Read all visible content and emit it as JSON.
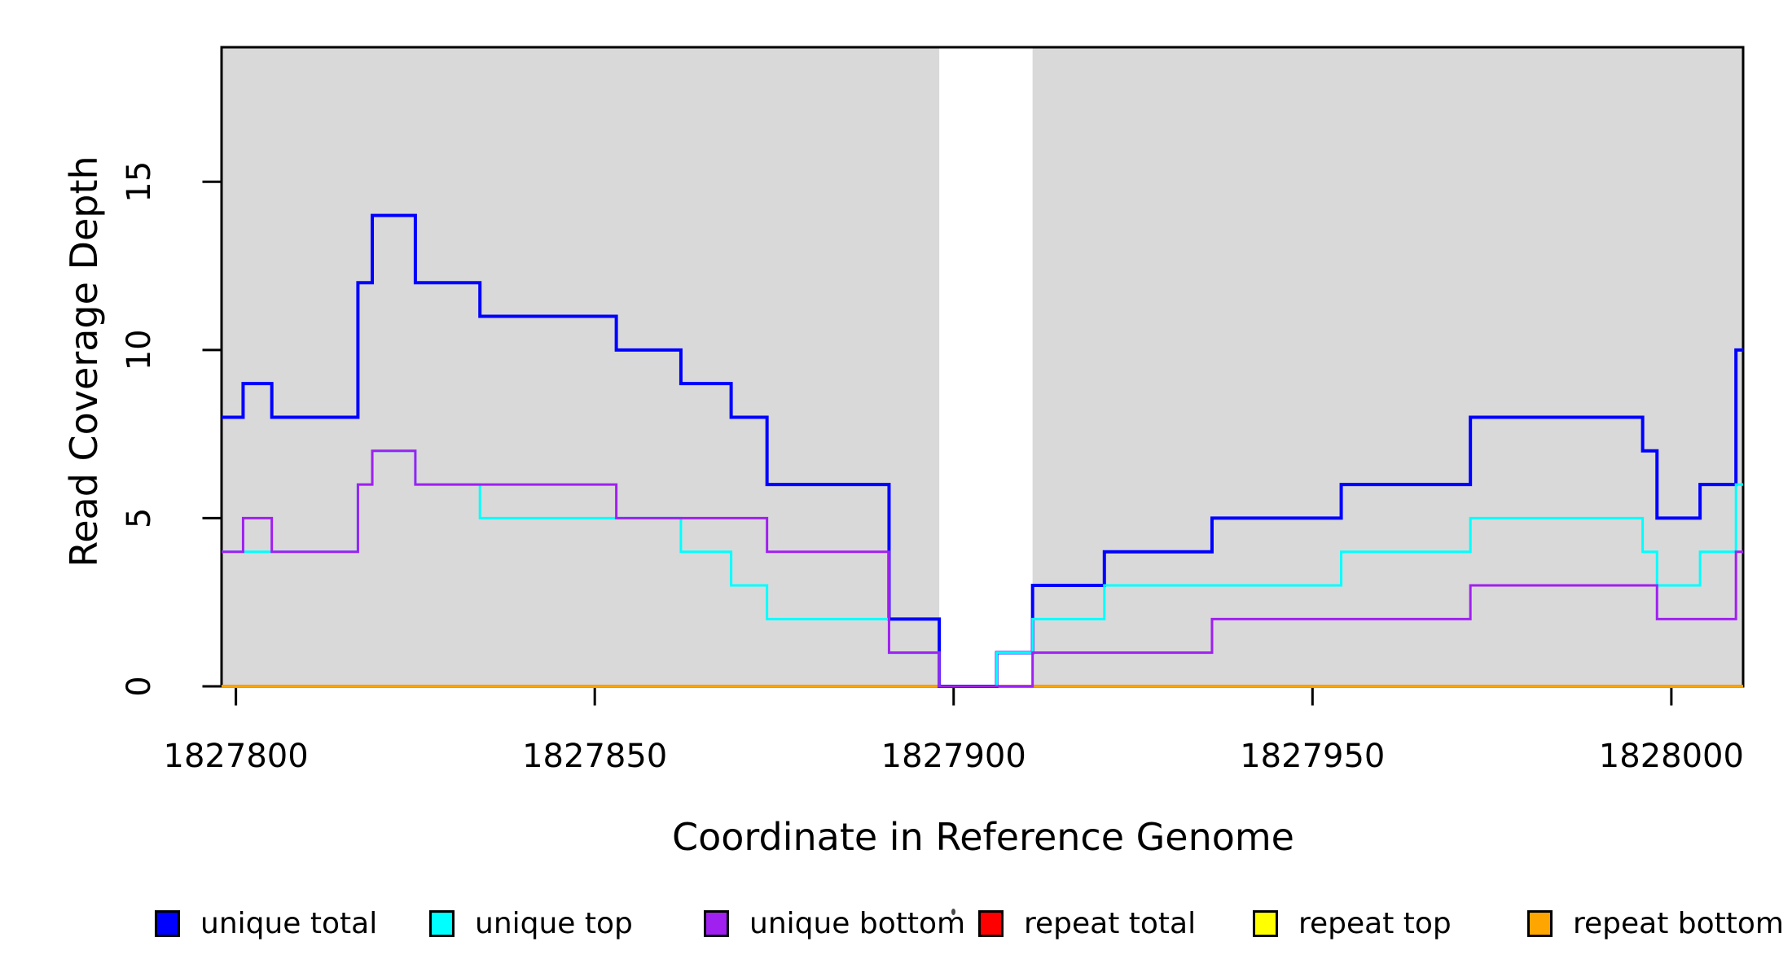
{
  "chart_data": {
    "type": "line",
    "subtype": "step-post",
    "title": "",
    "xlabel": "Coordinate in Reference Genome",
    "ylabel": "Read Coverage Depth",
    "x_ticks": [
      1827800,
      1827850,
      1827900,
      1827950,
      1828000
    ],
    "y_ticks": [
      0,
      5,
      10,
      15
    ],
    "xlim": [
      1827798,
      1828010
    ],
    "ylim": [
      0,
      19
    ],
    "x_end": 1828010,
    "grid": false,
    "legend_position": "bottom-horizontal",
    "shaded_regions": {
      "color": "#D9D9D9",
      "meaning": "unique-mappability regions",
      "ranges": [
        [
          1827798,
          1827898
        ],
        [
          1827911,
          1828010
        ]
      ]
    },
    "series": [
      {
        "id": "unique-total",
        "name": "unique total",
        "color": "#0000FF",
        "width": 4,
        "z": 4,
        "steps": [
          [
            1827798,
            8
          ],
          [
            1827801,
            9
          ],
          [
            1827805,
            8
          ],
          [
            1827817,
            12
          ],
          [
            1827819,
            14
          ],
          [
            1827825,
            12
          ],
          [
            1827834,
            11
          ],
          [
            1827853,
            10
          ],
          [
            1827862,
            9
          ],
          [
            1827869,
            8
          ],
          [
            1827874,
            6
          ],
          [
            1827891,
            2
          ],
          [
            1827898,
            0
          ],
          [
            1827906,
            1
          ],
          [
            1827911,
            3
          ],
          [
            1827921,
            4
          ],
          [
            1827936,
            5
          ],
          [
            1827954,
            6
          ],
          [
            1827972,
            8
          ],
          [
            1827996,
            7
          ],
          [
            1827998,
            5
          ],
          [
            1828004,
            6
          ],
          [
            1828009,
            10
          ]
        ]
      },
      {
        "id": "unique-top",
        "name": "unique top",
        "color": "#00FFFF",
        "width": 3,
        "z": 5,
        "steps": [
          [
            1827798,
            4
          ],
          [
            1827817,
            6
          ],
          [
            1827819,
            7
          ],
          [
            1827825,
            6
          ],
          [
            1827834,
            5
          ],
          [
            1827862,
            4
          ],
          [
            1827869,
            3
          ],
          [
            1827874,
            2
          ],
          [
            1827891,
            1
          ],
          [
            1827898,
            0
          ],
          [
            1827906,
            1
          ],
          [
            1827911,
            2
          ],
          [
            1827921,
            3
          ],
          [
            1827954,
            4
          ],
          [
            1827972,
            5
          ],
          [
            1827996,
            4
          ],
          [
            1827998,
            3
          ],
          [
            1828004,
            4
          ],
          [
            1828009,
            6
          ]
        ]
      },
      {
        "id": "unique-bottom",
        "name": "unique bottom",
        "color": "#A020F0",
        "width": 3,
        "z": 6,
        "steps": [
          [
            1827798,
            4
          ],
          [
            1827801,
            5
          ],
          [
            1827805,
            4
          ],
          [
            1827817,
            6
          ],
          [
            1827819,
            7
          ],
          [
            1827825,
            6
          ],
          [
            1827853,
            5
          ],
          [
            1827874,
            4
          ],
          [
            1827891,
            1
          ],
          [
            1827898,
            0
          ],
          [
            1827911,
            1
          ],
          [
            1827936,
            2
          ],
          [
            1827972,
            3
          ],
          [
            1827998,
            2
          ],
          [
            1828009,
            4
          ]
        ]
      },
      {
        "id": "repeat-total",
        "name": "repeat total",
        "color": "#FF0000",
        "width": 4,
        "z": 1,
        "steps": [
          [
            1827798,
            0
          ]
        ]
      },
      {
        "id": "repeat-top",
        "name": "repeat top",
        "color": "#FFFF00",
        "width": 3.5,
        "z": 2,
        "steps": [
          [
            1827798,
            0
          ]
        ]
      },
      {
        "id": "repeat-bottom",
        "name": "repeat bottom",
        "color": "#FFA500",
        "width": 3,
        "z": 3,
        "steps": [
          [
            1827798,
            0
          ]
        ]
      }
    ]
  }
}
